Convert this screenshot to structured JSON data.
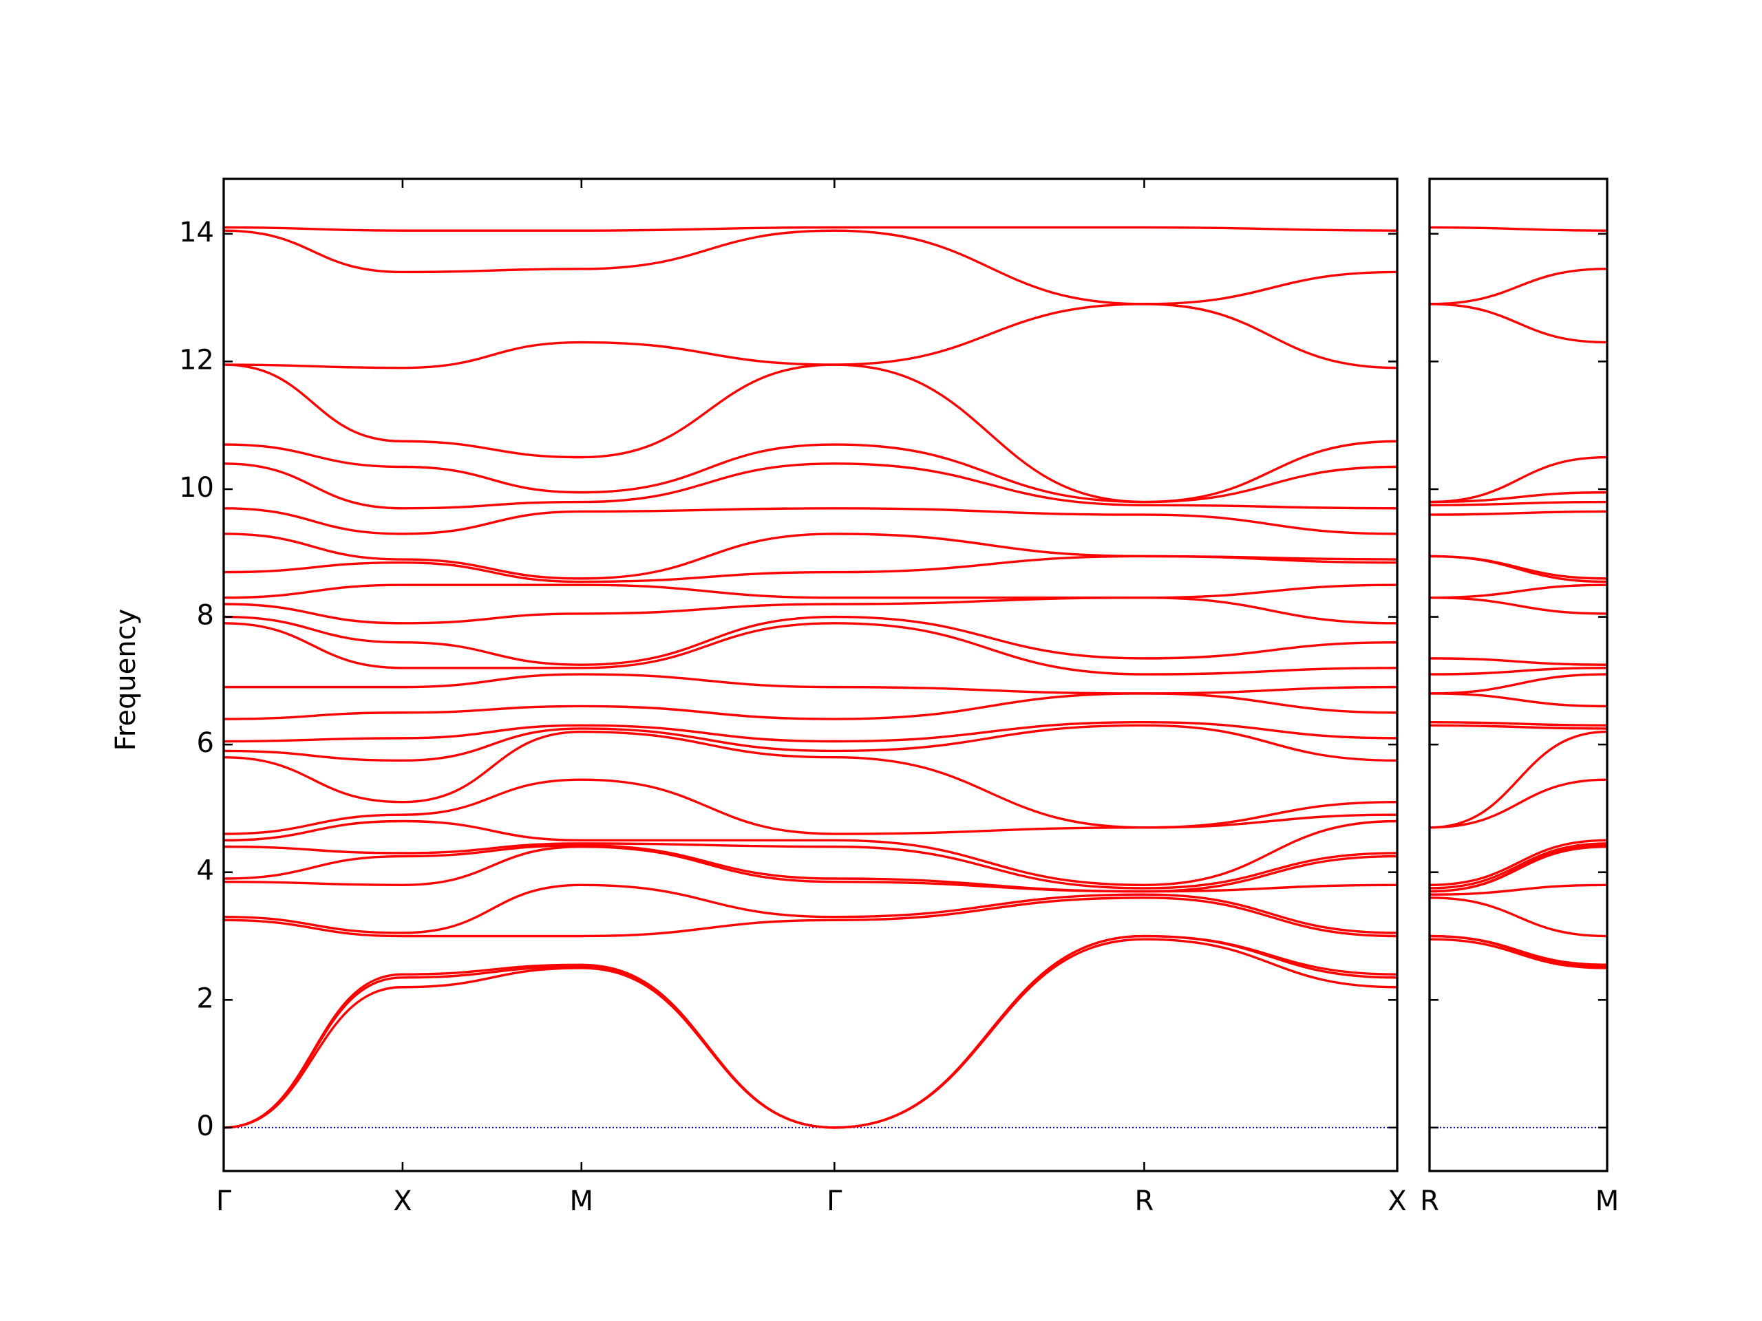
{
  "chart_data": [
    {
      "type": "line",
      "ylabel": "Frequency",
      "xlim": [
        0,
        3.2802
      ],
      "ylim": [
        -0.68,
        14.86
      ],
      "yticks": [
        0,
        2,
        4,
        6,
        8,
        10,
        12,
        14
      ],
      "xticks": [
        {
          "value": 0,
          "label": "Γ"
        },
        {
          "value": 0.5,
          "label": "X"
        },
        {
          "value": 1.0,
          "label": "M"
        },
        {
          "value": 1.7071,
          "label": "Γ"
        },
        {
          "value": 2.5731,
          "label": "R"
        },
        {
          "value": 3.2802,
          "label": "X"
        }
      ],
      "hline": 0,
      "hline_color": "#0000cc",
      "x": [
        0,
        0.5,
        1.0,
        1.7071,
        2.5731,
        3.2802
      ],
      "series": [
        {
          "color": "#ff0000",
          "values": [
            0,
            2.2,
            2.5,
            0,
            2.95,
            2.2
          ]
        },
        {
          "color": "#ff0000",
          "values": [
            0,
            2.35,
            2.52,
            0,
            3.0,
            2.35
          ]
        },
        {
          "color": "#ff0000",
          "values": [
            0,
            2.4,
            2.55,
            0,
            3.0,
            2.4
          ]
        },
        {
          "color": "#ff0000",
          "values": [
            3.25,
            3.0,
            3.0,
            3.25,
            3.6,
            3.0
          ]
        },
        {
          "color": "#ff0000",
          "values": [
            3.3,
            3.05,
            3.8,
            3.3,
            3.65,
            3.05
          ]
        },
        {
          "color": "#ff0000",
          "values": [
            3.85,
            3.8,
            4.4,
            3.85,
            3.7,
            3.8
          ]
        },
        {
          "color": "#ff0000",
          "values": [
            3.9,
            4.25,
            4.42,
            3.9,
            3.7,
            4.25
          ]
        },
        {
          "color": "#ff0000",
          "values": [
            4.4,
            4.3,
            4.45,
            4.4,
            3.75,
            4.3
          ]
        },
        {
          "color": "#ff0000",
          "values": [
            4.5,
            4.8,
            4.5,
            4.5,
            3.8,
            4.8
          ]
        },
        {
          "color": "#ff0000",
          "values": [
            4.6,
            4.9,
            5.45,
            4.6,
            4.7,
            4.9
          ]
        },
        {
          "color": "#ff0000",
          "values": [
            5.8,
            5.1,
            6.2,
            5.8,
            4.7,
            5.1
          ]
        },
        {
          "color": "#ff0000",
          "values": [
            5.9,
            5.75,
            6.25,
            5.9,
            6.3,
            5.75
          ]
        },
        {
          "color": "#ff0000",
          "values": [
            6.05,
            6.1,
            6.3,
            6.05,
            6.35,
            6.1
          ]
        },
        {
          "color": "#ff0000",
          "values": [
            6.4,
            6.5,
            6.6,
            6.4,
            6.8,
            6.5
          ]
        },
        {
          "color": "#ff0000",
          "values": [
            6.9,
            6.9,
            7.1,
            6.9,
            6.8,
            6.9
          ]
        },
        {
          "color": "#ff0000",
          "values": [
            7.9,
            7.2,
            7.2,
            7.9,
            7.1,
            7.2
          ]
        },
        {
          "color": "#ff0000",
          "values": [
            8.0,
            7.6,
            7.25,
            8.0,
            7.35,
            7.6
          ]
        },
        {
          "color": "#ff0000",
          "values": [
            8.2,
            7.9,
            8.05,
            8.2,
            8.3,
            7.9
          ]
        },
        {
          "color": "#ff0000",
          "values": [
            8.3,
            8.5,
            8.5,
            8.3,
            8.3,
            8.5
          ]
        },
        {
          "color": "#ff0000",
          "values": [
            8.7,
            8.85,
            8.55,
            8.7,
            8.95,
            8.85
          ]
        },
        {
          "color": "#ff0000",
          "values": [
            9.3,
            8.9,
            8.6,
            9.3,
            8.95,
            8.9
          ]
        },
        {
          "color": "#ff0000",
          "values": [
            9.7,
            9.3,
            9.65,
            9.7,
            9.6,
            9.3
          ]
        },
        {
          "color": "#ff0000",
          "values": [
            10.4,
            9.7,
            9.8,
            10.4,
            9.75,
            9.7
          ]
        },
        {
          "color": "#ff0000",
          "values": [
            10.7,
            10.35,
            9.95,
            10.7,
            9.8,
            10.35
          ]
        },
        {
          "color": "#ff0000",
          "values": [
            11.95,
            10.75,
            10.5,
            11.95,
            9.8,
            10.75
          ]
        },
        {
          "color": "#ff0000",
          "values": [
            11.95,
            11.9,
            12.3,
            11.95,
            12.9,
            11.9
          ]
        },
        {
          "color": "#ff0000",
          "values": [
            14.05,
            13.4,
            13.45,
            14.05,
            12.9,
            13.4
          ]
        },
        {
          "color": "#ff0000",
          "values": [
            14.1,
            14.05,
            14.05,
            14.1,
            14.1,
            14.05
          ]
        }
      ]
    },
    {
      "type": "line",
      "xlim": [
        0,
        0.7071
      ],
      "ylim": [
        -0.68,
        14.86
      ],
      "yticks": [
        0,
        2,
        4,
        6,
        8,
        10,
        12,
        14
      ],
      "xticks": [
        {
          "value": 0,
          "label": "R"
        },
        {
          "value": 0.7071,
          "label": "M"
        }
      ],
      "hline": 0,
      "hline_color": "#0000cc",
      "x": [
        0,
        0.7071
      ],
      "series": [
        {
          "color": "#ff0000",
          "values": [
            2.95,
            2.5
          ]
        },
        {
          "color": "#ff0000",
          "values": [
            3.0,
            2.52
          ]
        },
        {
          "color": "#ff0000",
          "values": [
            3.0,
            2.55
          ]
        },
        {
          "color": "#ff0000",
          "values": [
            3.6,
            3.0
          ]
        },
        {
          "color": "#ff0000",
          "values": [
            3.65,
            3.8
          ]
        },
        {
          "color": "#ff0000",
          "values": [
            3.7,
            4.4
          ]
        },
        {
          "color": "#ff0000",
          "values": [
            3.7,
            4.42
          ]
        },
        {
          "color": "#ff0000",
          "values": [
            3.75,
            4.45
          ]
        },
        {
          "color": "#ff0000",
          "values": [
            3.8,
            4.5
          ]
        },
        {
          "color": "#ff0000",
          "values": [
            4.7,
            5.45
          ]
        },
        {
          "color": "#ff0000",
          "values": [
            4.7,
            6.2
          ]
        },
        {
          "color": "#ff0000",
          "values": [
            6.3,
            6.25
          ]
        },
        {
          "color": "#ff0000",
          "values": [
            6.35,
            6.3
          ]
        },
        {
          "color": "#ff0000",
          "values": [
            6.8,
            6.6
          ]
        },
        {
          "color": "#ff0000",
          "values": [
            6.8,
            7.1
          ]
        },
        {
          "color": "#ff0000",
          "values": [
            7.1,
            7.2
          ]
        },
        {
          "color": "#ff0000",
          "values": [
            7.35,
            7.25
          ]
        },
        {
          "color": "#ff0000",
          "values": [
            8.3,
            8.05
          ]
        },
        {
          "color": "#ff0000",
          "values": [
            8.3,
            8.5
          ]
        },
        {
          "color": "#ff0000",
          "values": [
            8.95,
            8.55
          ]
        },
        {
          "color": "#ff0000",
          "values": [
            8.95,
            8.6
          ]
        },
        {
          "color": "#ff0000",
          "values": [
            9.6,
            9.65
          ]
        },
        {
          "color": "#ff0000",
          "values": [
            9.75,
            9.8
          ]
        },
        {
          "color": "#ff0000",
          "values": [
            9.8,
            9.95
          ]
        },
        {
          "color": "#ff0000",
          "values": [
            9.8,
            10.5
          ]
        },
        {
          "color": "#ff0000",
          "values": [
            12.9,
            12.3
          ]
        },
        {
          "color": "#ff0000",
          "values": [
            12.9,
            13.45
          ]
        },
        {
          "color": "#ff0000",
          "values": [
            14.1,
            14.05
          ]
        }
      ]
    }
  ]
}
